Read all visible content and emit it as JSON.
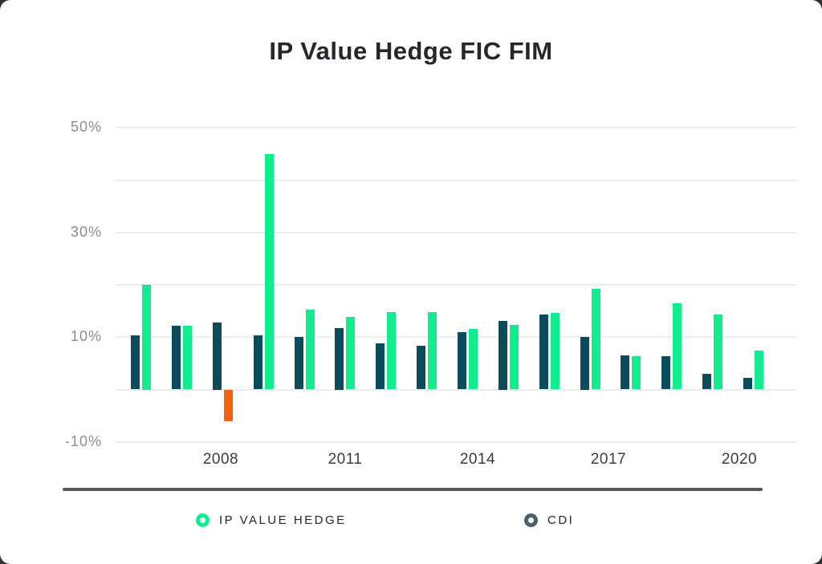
{
  "title": "IP Value Hedge FIC FIM",
  "colors": {
    "card_background": "#ffffff",
    "page_background": "#333333",
    "title_text": "#24272c",
    "gridline": "#ededed",
    "y_tick_text": "#8c8c8c",
    "x_tick_text": "#3b3b3b",
    "series_green": "#12eb8e",
    "series_green_negative": "#f4600d",
    "series_dark_teal": "#0b4b5c",
    "legend_cdi_marker": "#47626e",
    "legend_divider": "#57585a",
    "legend_text": "#23262a"
  },
  "chart_data": {
    "type": "bar",
    "title": "IP Value Hedge FIC FIM",
    "categories": [
      "2006",
      "2007",
      "2008",
      "2009",
      "2010",
      "2011",
      "2012",
      "2013",
      "2014",
      "2015",
      "2016",
      "2017",
      "2018",
      "2019",
      "2020",
      "2021"
    ],
    "series": [
      {
        "name": "CDI",
        "color": "#0b4b5c",
        "values": [
          10.3,
          12.2,
          12.8,
          10.4,
          10.1,
          11.8,
          8.8,
          8.4,
          11.0,
          13.1,
          14.3,
          10.0,
          6.5,
          6.3,
          3.0,
          2.2
        ]
      },
      {
        "name": "IP VALUE HEDGE",
        "color": "#12eb8e",
        "negative_color": "#f4600d",
        "values": [
          20.0,
          12.2,
          -6.0,
          45.0,
          15.3,
          13.9,
          14.8,
          14.8,
          11.6,
          12.3,
          14.7,
          19.3,
          6.4,
          16.5,
          14.3,
          7.4
        ]
      }
    ],
    "bar_layout_note": "Each year shows CDI (dark teal) bar on the left and IP VALUE HEDGE (green) bar on the right; the single negative IP VALUE HEDGE value (2008) is drawn in orange below the zero line.",
    "ylabel": "",
    "xlabel": "",
    "ylim": [
      -13,
      55
    ],
    "gridline_values": [
      50,
      40,
      30,
      20,
      10,
      0,
      -10
    ],
    "y_tick_values": [
      50,
      30,
      10,
      -10
    ],
    "y_tick_labels": [
      "50%",
      "30%",
      "10%",
      "-10%"
    ],
    "x_tick_labels": [
      "2008",
      "2011",
      "2014",
      "2017",
      "2020"
    ],
    "x_tick_category_index": [
      2,
      5,
      8,
      11,
      14
    ],
    "grid": "horizontal only",
    "legend_position": "bottom"
  },
  "legend": {
    "items": [
      {
        "label": "IP VALUE HEDGE",
        "marker_color": "#12eb8e"
      },
      {
        "label": "CDI",
        "marker_color": "#47626e"
      }
    ]
  }
}
